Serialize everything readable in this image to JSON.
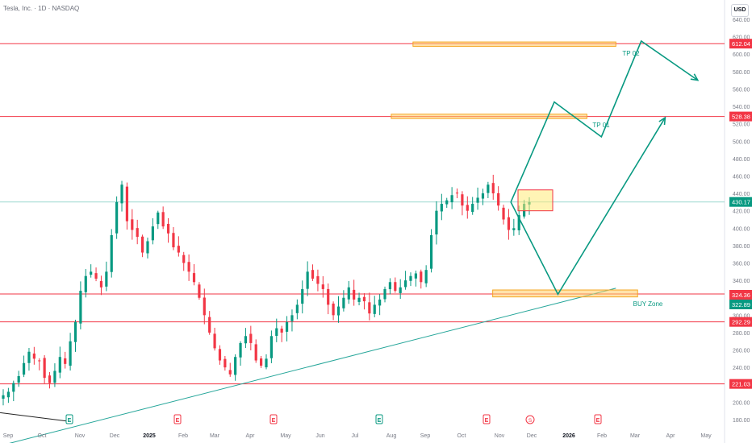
{
  "header": {
    "symbol_title": "Tesla, Inc. · 1D · NASDAQ",
    "currency": "USD"
  },
  "chart_data": {
    "type": "candlestick",
    "title": "Tesla, Inc. · 1D · NASDAQ",
    "ylim": [
      175,
      648
    ],
    "y_ticks": [
      "180.00",
      "200.00",
      "220.00",
      "240.00",
      "260.00",
      "280.00",
      "300.00",
      "320.00",
      "340.00",
      "360.00",
      "380.00",
      "400.00",
      "420.00",
      "440.00",
      "460.00",
      "480.00",
      "500.00",
      "520.00",
      "540.00",
      "560.00",
      "580.00",
      "600.00",
      "620.00",
      "640.00"
    ],
    "x_ticks": [
      "Sep",
      "Oct",
      "Nov",
      "Dec",
      "2025",
      "Feb",
      "Mar",
      "Apr",
      "May",
      "Jun",
      "Jul",
      "Aug",
      "Sep",
      "Oct",
      "Nov",
      "Dec",
      "2026",
      "Feb",
      "Mar",
      "Apr",
      "May"
    ],
    "bold_x_ticks": [
      "2025",
      "2026"
    ],
    "price_labels": [
      {
        "value": 612.04,
        "text": "612.04",
        "color": "#f23645"
      },
      {
        "value": 528.38,
        "text": "528.38",
        "color": "#f23645"
      },
      {
        "value": 430.17,
        "text": "430.17",
        "color": "#089981"
      },
      {
        "value": 324.36,
        "text": "324.36",
        "color": "#f23645"
      },
      {
        "value": 322.89,
        "text": "322.89",
        "color": "#089981"
      },
      {
        "value": 292.29,
        "text": "292.29",
        "color": "#f23645"
      },
      {
        "value": 221.03,
        "text": "221.03",
        "color": "#f23645"
      }
    ],
    "horizontal_levels": [
      612.04,
      528.38,
      324.36,
      292.29,
      221.03
    ],
    "current_price": 430.17,
    "zones": [
      {
        "label": "TP 02",
        "x0": 0.57,
        "x1": 0.85,
        "y0": 609,
        "y1": 614
      },
      {
        "label": "TP 01",
        "x0": 0.54,
        "x1": 0.81,
        "y0": 526,
        "y1": 531
      },
      {
        "label": "BUY Zone",
        "x0": 0.68,
        "x1": 0.88,
        "y0": 321,
        "y1": 329
      }
    ],
    "entry_box": {
      "y0": 420,
      "y1": 444
    },
    "trendline": {
      "from": [
        0.0,
        150
      ],
      "to": [
        0.85,
        331
      ]
    },
    "projection_path_1": [
      [
        430,
        0.705
      ],
      [
        545,
        0.765
      ],
      [
        505,
        0.83
      ],
      [
        615,
        0.885
      ],
      [
        570,
        0.963
      ]
    ],
    "projection_path_2": [
      [
        430,
        0.705
      ],
      [
        324,
        0.77
      ],
      [
        527,
        0.918
      ]
    ],
    "close_series": [
      208,
      212,
      222,
      230,
      245,
      258,
      250,
      248,
      228,
      222,
      236,
      252,
      244,
      270,
      292,
      328,
      345,
      350,
      342,
      332,
      350,
      392,
      430,
      450,
      408,
      398,
      390,
      372,
      385,
      402,
      418,
      402,
      394,
      378,
      372,
      360,
      350,
      338,
      320,
      300,
      280,
      262,
      248,
      240,
      232,
      252,
      268,
      276,
      268,
      248,
      242,
      250,
      276,
      285,
      280,
      292,
      300,
      312,
      330,
      350,
      342,
      336,
      330,
      312,
      300,
      310,
      320,
      332,
      318,
      320,
      316,
      302,
      312,
      318,
      330,
      338,
      328,
      332,
      340,
      345,
      348,
      338,
      352,
      392,
      420,
      428,
      432,
      438,
      440,
      426,
      420,
      428,
      435,
      440,
      450,
      440,
      426,
      410,
      398,
      400,
      415,
      428,
      430
    ],
    "series": [
      {
        "name": "",
        "values": []
      }
    ],
    "legend": "none",
    "grid": false
  },
  "markers": {
    "earnings": [
      "E",
      "E",
      "E",
      "E",
      "E",
      "E"
    ],
    "dividend": [
      "D"
    ],
    "split": [
      "S"
    ]
  }
}
